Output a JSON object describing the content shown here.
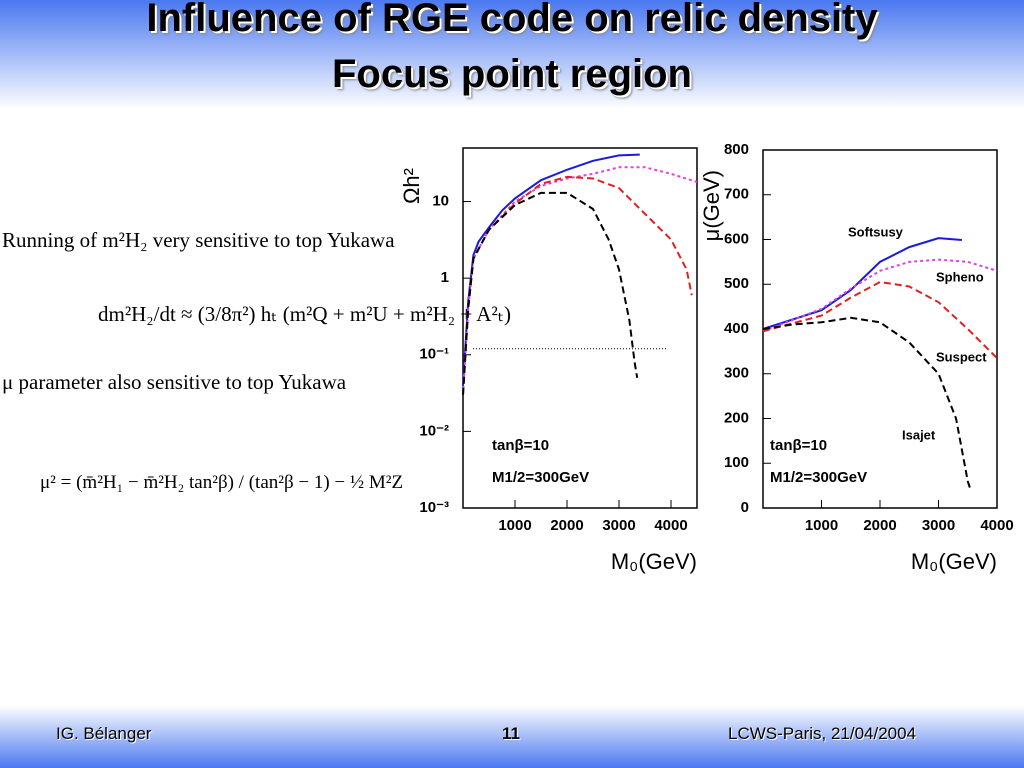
{
  "slide": {
    "title": "Influence of RGE code on relic density",
    "subtitle": "Focus point region",
    "text": [
      "Running of m²H₂ very sensitive to top Yukawa",
      "dm²H₂/dt ≈ (3/8π²) hₜ (m²Q + m²U + m²H₂ + A²ₜ)",
      "μ parameter also sensitive to top Yukawa",
      "μ² = (m̄²H₁ − m̄²H₂ tan²β) / (tan²β − 1) − ½ M²Z"
    ],
    "footer": {
      "author": "IG. Bélanger",
      "page": "11",
      "event": "LCWS-Paris, 21/04/2004"
    }
  },
  "chart_data": [
    {
      "type": "line",
      "xlabel": "M₀(GeV)",
      "ylabel": "Ωh²",
      "ylog": true,
      "xlim": [
        0,
        4500
      ],
      "ylim": [
        0.001,
        50
      ],
      "xticks": [
        1000,
        2000,
        3000,
        4000
      ],
      "yticks": [
        {
          "value": 0.001,
          "label": "10⁻³"
        },
        {
          "value": 0.01,
          "label": "10⁻²"
        },
        {
          "value": 0.1,
          "label": "10⁻¹"
        },
        1,
        10
      ],
      "reference_line": 0.12,
      "annotations": [
        "tanβ=10",
        "M1/2=300GeV"
      ],
      "series": [
        {
          "color": "#1a1adb",
          "style": "solid",
          "x": [
            0,
            100,
            200,
            300,
            500,
            750,
            1000,
            1500,
            2000,
            2500,
            3000,
            3400
          ],
          "values": [
            0.04,
            0.5,
            2,
            3,
            4.6,
            7.6,
            11,
            19,
            26,
            34,
            40,
            41
          ]
        },
        {
          "color": "#e040e0",
          "style": "dotted",
          "x": [
            0,
            100,
            200,
            500,
            1000,
            1500,
            2000,
            2500,
            3000,
            3500,
            4000,
            4500
          ],
          "values": [
            0.03,
            0.4,
            1.8,
            4.3,
            10,
            16,
            20,
            23,
            28,
            28,
            23,
            18
          ]
        },
        {
          "color": "#e02020",
          "style": "dashed",
          "x": [
            0,
            100,
            200,
            500,
            1000,
            1500,
            2000,
            2500,
            3000,
            3500,
            4000,
            4300,
            4400
          ],
          "values": [
            0.03,
            0.4,
            1.8,
            4.3,
            9.4,
            17,
            21,
            20,
            15,
            6.9,
            3.2,
            1.3,
            0.6
          ]
        },
        {
          "color": "#000000",
          "style": "dashed",
          "x": [
            0,
            100,
            200,
            500,
            1000,
            1500,
            2000,
            2500,
            2800,
            3000,
            3200,
            3300,
            3350
          ],
          "values": [
            0.03,
            0.4,
            1.8,
            4.3,
            9,
            13,
            13,
            8,
            3.2,
            1.3,
            0.28,
            0.08,
            0.05
          ]
        }
      ]
    },
    {
      "type": "line",
      "xlabel": "M₀(GeV)",
      "ylabel": "μ(GeV)",
      "xlim": [
        0,
        4000
      ],
      "ylim": [
        0,
        800
      ],
      "xticks": [
        1000,
        2000,
        3000,
        4000
      ],
      "yticks": [
        0,
        100,
        200,
        300,
        400,
        500,
        600,
        700,
        800
      ],
      "annotations": [
        "tanβ=10",
        "M1/2=300GeV"
      ],
      "series": [
        {
          "name": "Softsusy",
          "color": "#1a1adb",
          "style": "solid",
          "x": [
            0,
            1000,
            1500,
            2000,
            2500,
            3000,
            3400
          ],
          "values": [
            400,
            442,
            487,
            550,
            583,
            603,
            599
          ]
        },
        {
          "name": "Spheno",
          "color": "#e040e0",
          "style": "dotted",
          "x": [
            0,
            1000,
            1500,
            2000,
            2500,
            3000,
            3500,
            4000
          ],
          "values": [
            395,
            445,
            490,
            530,
            550,
            555,
            550,
            530
          ]
        },
        {
          "name": "Suspect",
          "color": "#e02020",
          "style": "dashed",
          "x": [
            0,
            1000,
            1500,
            2000,
            2500,
            3000,
            3500,
            4000
          ],
          "values": [
            395,
            430,
            470,
            505,
            495,
            460,
            400,
            335
          ]
        },
        {
          "name": "Isajet",
          "color": "#000000",
          "style": "dashed",
          "x": [
            0,
            500,
            1000,
            1500,
            2000,
            2500,
            3000,
            3300,
            3500,
            3550
          ],
          "values": [
            400,
            410,
            415,
            425,
            415,
            370,
            300,
            200,
            60,
            40
          ]
        }
      ]
    }
  ]
}
